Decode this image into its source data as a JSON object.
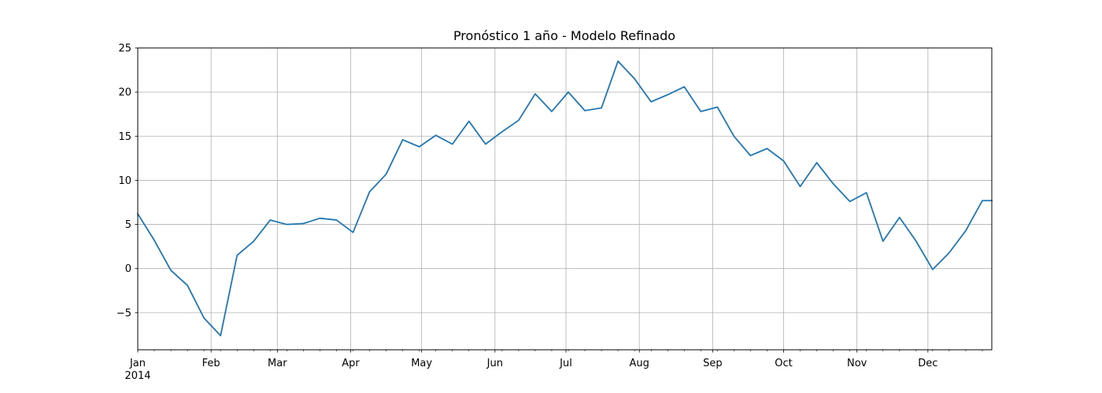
{
  "chart_data": {
    "type": "line",
    "title": "Pronóstico 1 año - Modelo Refinado",
    "xlabel": "",
    "ylabel": "",
    "xlim": [
      "2014-01-01",
      "2014-12-28"
    ],
    "ylim": [
      -9.2,
      25
    ],
    "grid": true,
    "line_color": "#1f77b4",
    "x_ticks": [
      {
        "date": "2014-01-01",
        "label": "Jan",
        "sublabel": "2014"
      },
      {
        "date": "2014-02-01",
        "label": "Feb",
        "sublabel": ""
      },
      {
        "date": "2014-03-01",
        "label": "Mar",
        "sublabel": ""
      },
      {
        "date": "2014-04-01",
        "label": "Apr",
        "sublabel": ""
      },
      {
        "date": "2014-05-01",
        "label": "May",
        "sublabel": ""
      },
      {
        "date": "2014-06-01",
        "label": "Jun",
        "sublabel": ""
      },
      {
        "date": "2014-07-01",
        "label": "Jul",
        "sublabel": ""
      },
      {
        "date": "2014-08-01",
        "label": "Aug",
        "sublabel": ""
      },
      {
        "date": "2014-09-01",
        "label": "Sep",
        "sublabel": ""
      },
      {
        "date": "2014-10-01",
        "label": "Oct",
        "sublabel": ""
      },
      {
        "date": "2014-11-01",
        "label": "Nov",
        "sublabel": ""
      },
      {
        "date": "2014-12-01",
        "label": "Dec",
        "sublabel": ""
      }
    ],
    "y_ticks": [
      {
        "value": -5,
        "label": "−5"
      },
      {
        "value": 0,
        "label": "0"
      },
      {
        "value": 5,
        "label": "5"
      },
      {
        "value": 10,
        "label": "10"
      },
      {
        "value": 15,
        "label": "15"
      },
      {
        "value": 20,
        "label": "20"
      },
      {
        "value": 25,
        "label": "25"
      }
    ],
    "series": [
      {
        "x": [
          "2014-01-01",
          "2014-01-08",
          "2014-01-15",
          "2014-01-22",
          "2014-01-29",
          "2014-02-05",
          "2014-02-12",
          "2014-02-19",
          "2014-02-26",
          "2014-03-05",
          "2014-03-12",
          "2014-03-19",
          "2014-03-26",
          "2014-04-02",
          "2014-04-09",
          "2014-04-16",
          "2014-04-23",
          "2014-04-30",
          "2014-05-07",
          "2014-05-14",
          "2014-05-21",
          "2014-05-28",
          "2014-06-04",
          "2014-06-11",
          "2014-06-18",
          "2014-06-25",
          "2014-07-02",
          "2014-07-09",
          "2014-07-16",
          "2014-07-23",
          "2014-07-30",
          "2014-08-06",
          "2014-08-13",
          "2014-08-20",
          "2014-08-27",
          "2014-09-03",
          "2014-09-10",
          "2014-09-17",
          "2014-09-24",
          "2014-10-01",
          "2014-10-08",
          "2014-10-15",
          "2014-10-22",
          "2014-10-29",
          "2014-11-05",
          "2014-11-12",
          "2014-11-19",
          "2014-11-26",
          "2014-12-03",
          "2014-12-10",
          "2014-12-17",
          "2014-12-24",
          "2014-12-28"
        ],
        "y": [
          6.2,
          3.2,
          -0.2,
          -1.9,
          -5.6,
          -7.6,
          1.5,
          3.1,
          5.5,
          5.0,
          5.1,
          5.7,
          5.5,
          4.1,
          8.7,
          10.7,
          14.6,
          13.8,
          15.1,
          14.1,
          16.7,
          14.1,
          15.5,
          16.8,
          19.8,
          17.8,
          20.0,
          17.9,
          18.2,
          23.5,
          21.5,
          18.9,
          19.7,
          20.6,
          17.8,
          18.3,
          15.0,
          12.8,
          13.6,
          12.2,
          9.3,
          12.0,
          9.6,
          7.6,
          8.6,
          3.1,
          5.8,
          3.1,
          -0.1,
          1.8,
          4.3,
          7.7,
          7.7
        ]
      }
    ]
  }
}
